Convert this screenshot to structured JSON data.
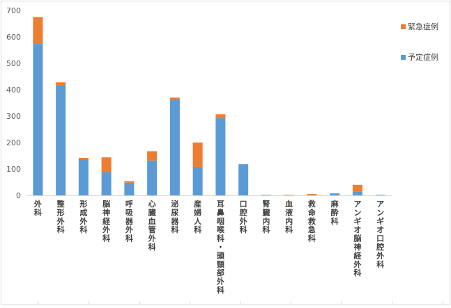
{
  "chart_data": {
    "type": "bar",
    "stacked": true,
    "categories": [
      "外科",
      "整形外科",
      "形成外科",
      "脳神経外科",
      "呼吸器外科",
      "心臓血管外科",
      "泌尿器科",
      "産婦人科",
      "耳鼻咽喉科・頭頸部外科",
      "口腔外科",
      "腎臓内科",
      "血液内科",
      "救命救急科",
      "麻酔科",
      "アンギオ脳神経外科",
      "アンギオ口腔外科"
    ],
    "series": [
      {
        "name": "予定症例",
        "color": "#5b9bd5",
        "values": [
          573,
          418,
          137,
          88,
          48,
          132,
          362,
          108,
          292,
          118,
          2,
          1,
          2,
          6,
          15,
          2
        ]
      },
      {
        "name": "緊急症例",
        "color": "#ed7d31",
        "values": [
          102,
          10,
          5,
          56,
          6,
          35,
          8,
          92,
          15,
          0,
          0,
          1,
          3,
          2,
          25,
          0
        ]
      }
    ],
    "ylim": [
      0,
      700
    ],
    "yticks": [
      "0",
      "100",
      "200",
      "300",
      "400",
      "500",
      "600",
      "700"
    ],
    "grid": false,
    "legend": "right",
    "title": "",
    "xlabel": "",
    "ylabel": ""
  }
}
